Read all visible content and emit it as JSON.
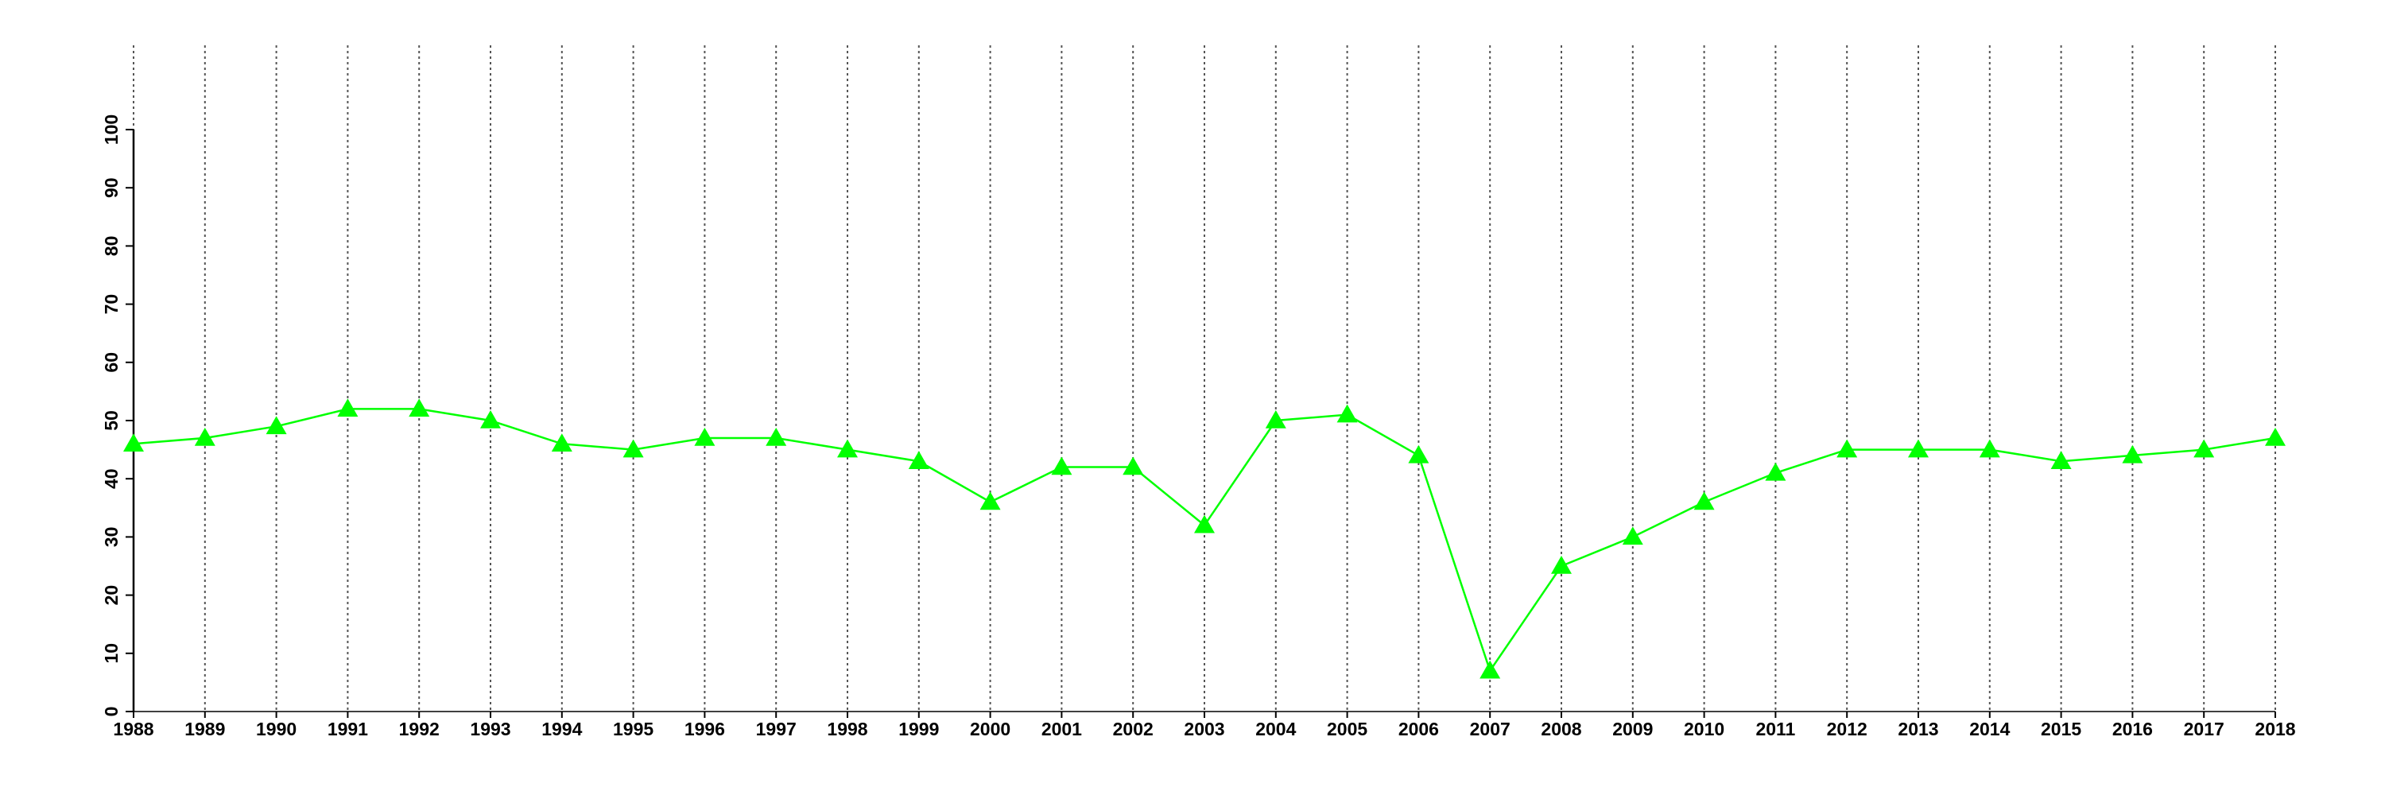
{
  "chart_data": {
    "type": "line",
    "x": [
      1988,
      1989,
      1990,
      1991,
      1992,
      1993,
      1994,
      1995,
      1996,
      1997,
      1998,
      1999,
      2000,
      2001,
      2002,
      2003,
      2004,
      2005,
      2006,
      2007,
      2008,
      2009,
      2010,
      2011,
      2012,
      2013,
      2014,
      2015,
      2016,
      2017,
      2018
    ],
    "series": [
      {
        "color": "#00ff00",
        "values": [
          46,
          47,
          49,
          52,
          52,
          50,
          46,
          45,
          47,
          47,
          45,
          43,
          36,
          42,
          42,
          32,
          50,
          51,
          44,
          7,
          25,
          30,
          36,
          41,
          45,
          45,
          45,
          43,
          44,
          45,
          47
        ]
      }
    ],
    "xlim": [
      1988,
      2018
    ],
    "xticks": [
      1988,
      1989,
      1990,
      1991,
      1992,
      1993,
      1994,
      1995,
      1996,
      1997,
      1998,
      1999,
      2000,
      2001,
      2002,
      2003,
      2004,
      2005,
      2006,
      2007,
      2008,
      2009,
      2010,
      2011,
      2012,
      2013,
      2014,
      2015,
      2016,
      2017,
      2018
    ],
    "ylim": [
      0,
      100
    ],
    "yticks": [
      0,
      10,
      20,
      30,
      40,
      50,
      60,
      70,
      80,
      90,
      100
    ],
    "grid": "x"
  }
}
